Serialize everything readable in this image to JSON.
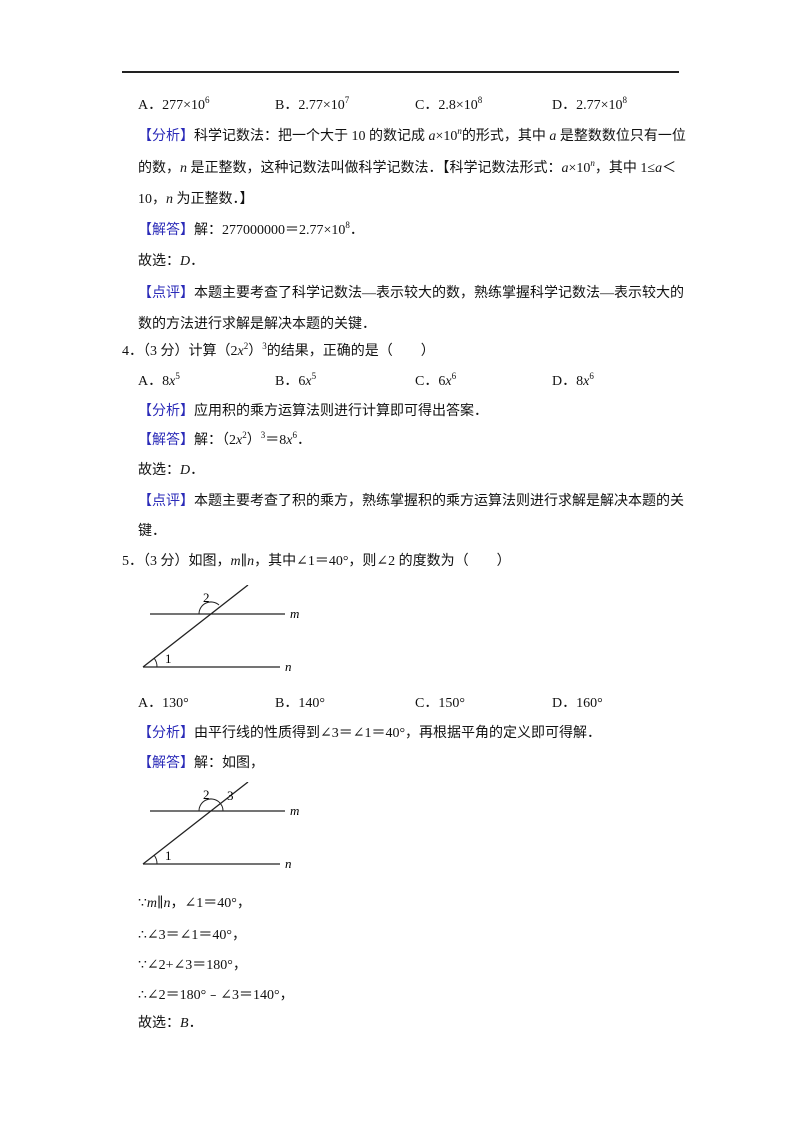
{
  "lines": [
    {
      "kind": "options",
      "items": [
        [
          "A．277×10",
          {
            "text": "6",
            "style": "sup"
          }
        ],
        [
          "B．2.77×10",
          {
            "text": "7",
            "style": "sup"
          }
        ],
        [
          "C．2.8×10",
          {
            "text": "8",
            "style": "sup"
          }
        ],
        [
          "D．2.77×10",
          {
            "text": "8",
            "style": "sup"
          }
        ]
      ]
    },
    {
      "kind": "text",
      "runs": [
        {
          "text": "【分析】",
          "style": "tag"
        },
        "科学记数法：把一个大于 10 的数记成 ",
        {
          "text": "a",
          "style": "i"
        },
        "×10",
        {
          "text": "n",
          "style": "sup-i"
        },
        "的形式，其中 ",
        {
          "text": "a",
          "style": "i"
        },
        " 是整数数位只有一位"
      ]
    },
    {
      "kind": "text",
      "runs": [
        "的数，",
        {
          "text": "n",
          "style": "i"
        },
        " 是正整数，这种记数法叫做科学记数法．【科学记数法形式：",
        {
          "text": "a",
          "style": "i"
        },
        "×10",
        {
          "text": "n",
          "style": "sup-i"
        },
        "，其中 1≤",
        {
          "text": "a",
          "style": "i"
        },
        "＜"
      ]
    },
    {
      "kind": "text",
      "runs": [
        "10，",
        {
          "text": "n",
          "style": "i"
        },
        " 为正整数．】"
      ]
    },
    {
      "kind": "text",
      "runs": [
        {
          "text": "【解答】",
          "style": "tag"
        },
        "解：277000000＝2.77×10",
        {
          "text": "8",
          "style": "sup"
        },
        "．"
      ]
    },
    {
      "kind": "text",
      "runs": [
        "故选：",
        {
          "text": "D",
          "style": "i"
        },
        "．"
      ]
    },
    {
      "kind": "text",
      "runs": [
        {
          "text": "【点评】",
          "style": "tag"
        },
        "本题主要考查了科学记数法—表示较大的数，熟练掌握科学记数法—表示较大的"
      ]
    },
    {
      "kind": "text",
      "runs": [
        "数的方法进行求解是解决本题的关键．"
      ]
    },
    {
      "kind": "question",
      "runs": [
        "4．（3 分）计算（2",
        {
          "text": "x",
          "style": "i"
        },
        {
          "text": "2",
          "style": "sup"
        },
        "）",
        {
          "text": "3",
          "style": "sup"
        },
        "的结果，正确的是（　　）"
      ]
    },
    {
      "kind": "options",
      "items": [
        [
          "A．8",
          {
            "text": "x",
            "style": "i"
          },
          {
            "text": "5",
            "style": "sup"
          }
        ],
        [
          "B．6",
          {
            "text": "x",
            "style": "i"
          },
          {
            "text": "5",
            "style": "sup"
          }
        ],
        [
          "C．6",
          {
            "text": "x",
            "style": "i"
          },
          {
            "text": "6",
            "style": "sup"
          }
        ],
        [
          "D．8",
          {
            "text": "x",
            "style": "i"
          },
          {
            "text": "6",
            "style": "sup"
          }
        ]
      ]
    },
    {
      "kind": "text",
      "runs": [
        {
          "text": "【分析】",
          "style": "tag"
        },
        "应用积的乘方运算法则进行计算即可得出答案．"
      ]
    },
    {
      "kind": "text",
      "runs": [
        {
          "text": "【解答】",
          "style": "tag"
        },
        "解：（2",
        {
          "text": "x",
          "style": "i"
        },
        {
          "text": "2",
          "style": "sup"
        },
        "）",
        {
          "text": "3",
          "style": "sup"
        },
        "＝8",
        {
          "text": "x",
          "style": "i"
        },
        {
          "text": "6",
          "style": "sup"
        },
        "．"
      ]
    },
    {
      "kind": "text",
      "runs": [
        "故选：",
        {
          "text": "D",
          "style": "i"
        },
        "．"
      ]
    },
    {
      "kind": "text",
      "runs": [
        {
          "text": "【点评】",
          "style": "tag"
        },
        "本题主要考查了积的乘方，熟练掌握积的乘方运算法则进行求解是解决本题的关"
      ]
    },
    {
      "kind": "text",
      "runs": [
        "键．"
      ]
    },
    {
      "kind": "question",
      "runs": [
        "5．（3 分）如图，",
        {
          "text": "m",
          "style": "i"
        },
        "∥",
        {
          "text": "n",
          "style": "i"
        },
        "，其中∠1＝40°，则∠2 的度数为（　　）"
      ]
    },
    {
      "kind": "figure",
      "labels": [
        "2",
        {
          "text": "m",
          "style": "i"
        },
        "1",
        {
          "text": "n",
          "style": "i"
        }
      ]
    },
    {
      "kind": "options",
      "items": [
        [
          "A．130°"
        ],
        [
          "B．140°"
        ],
        [
          "C．150°"
        ],
        [
          "D．160°"
        ]
      ]
    },
    {
      "kind": "text",
      "runs": [
        {
          "text": "【分析】",
          "style": "tag"
        },
        "由平行线的性质得到∠3＝∠1＝40°，再根据平角的定义即可得解．"
      ]
    },
    {
      "kind": "text",
      "runs": [
        {
          "text": "【解答】",
          "style": "tag"
        },
        "解：如图，"
      ]
    },
    {
      "kind": "figure",
      "labels": [
        "2",
        "3",
        {
          "text": "m",
          "style": "i"
        },
        "1",
        {
          "text": "n",
          "style": "i"
        }
      ]
    },
    {
      "kind": "text",
      "runs": [
        "∵",
        {
          "text": "m",
          "style": "i"
        },
        "∥",
        {
          "text": "n",
          "style": "i"
        },
        "，∠1＝40°，"
      ]
    },
    {
      "kind": "text",
      "runs": [
        "∴∠3＝∠1＝40°，"
      ]
    },
    {
      "kind": "text",
      "runs": [
        "∵∠2+∠3＝180°，"
      ]
    },
    {
      "kind": "text",
      "runs": [
        "∴∠2＝180°﹣∠3＝140°，"
      ]
    },
    {
      "kind": "text",
      "runs": [
        "故选：",
        {
          "text": "B",
          "style": "i"
        },
        "．"
      ]
    }
  ]
}
